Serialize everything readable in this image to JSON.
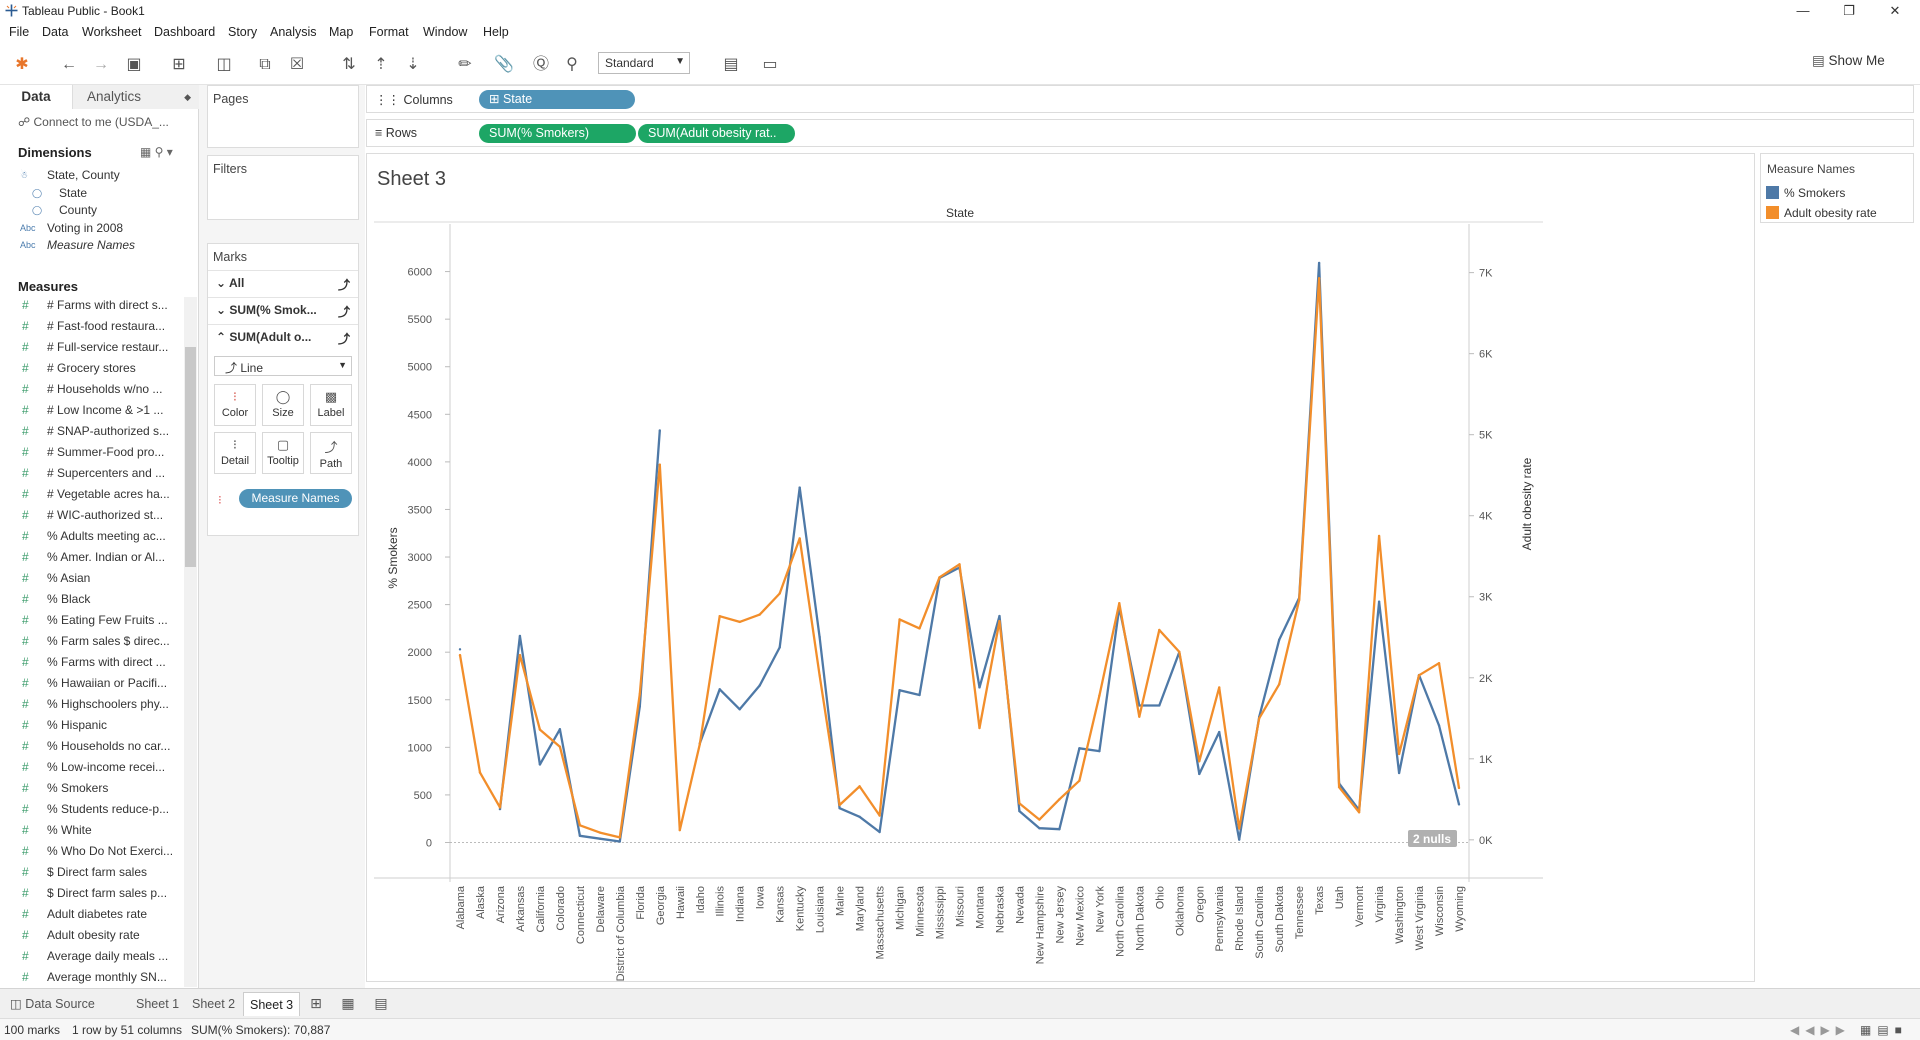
{
  "window": {
    "title": "Tableau Public - Book1"
  },
  "menu": [
    "File",
    "Data",
    "Worksheet",
    "Dashboard",
    "Story",
    "Analysis",
    "Map",
    "Format",
    "Window",
    "Help"
  ],
  "toolbar": {
    "fit": "Standard",
    "show_me": "Show Me"
  },
  "data_pane": {
    "tabs": {
      "data": "Data",
      "analytics": "Analytics"
    },
    "connection": "Connect to me (USDA_...",
    "dimensions_header": "Dimensions",
    "dimensions": [
      "State, County",
      "State",
      "County",
      "Voting in 2008",
      "Measure Names"
    ],
    "measures_header": "Measures",
    "measures": [
      "# Farms with direct s...",
      "# Fast-food restaura...",
      "# Full-service restaur...",
      "# Grocery stores",
      "# Households w/no ...",
      "# Low Income & >1 ...",
      "# SNAP-authorized s...",
      "# Summer-Food pro...",
      "# Supercenters and ...",
      "# Vegetable acres ha...",
      "# WIC-authorized st...",
      "% Adults meeting ac...",
      "% Amer. Indian or Al...",
      "% Asian",
      "% Black",
      "% Eating Few Fruits ...",
      "% Farm sales $ direc...",
      "% Farms with direct ...",
      "% Hawaiian or Pacifi...",
      "% Highschoolers phy...",
      "% Hispanic",
      "% Households no car...",
      "% Low-income recei...",
      "% Smokers",
      "% Students reduce-p...",
      "% White",
      "% Who Do Not Exerci...",
      "$ Direct farm sales",
      "$ Direct farm sales p...",
      "Adult diabetes rate",
      "Adult obesity rate",
      "Average daily meals ...",
      "Average monthly SN..."
    ]
  },
  "cards": {
    "pages": "Pages",
    "filters": "Filters",
    "marks": "Marks",
    "marks_all": "All",
    "marks_smokers": "SUM(% Smok...",
    "marks_obesity": "SUM(Adult o...",
    "mark_type": "Line",
    "buttons": [
      "Color",
      "Size",
      "Label",
      "Detail",
      "Tooltip",
      "Path"
    ],
    "measure_names_pill": "Measure Names"
  },
  "shelves": {
    "columns_label": "Columns",
    "columns_pill": "State",
    "rows_label": "Rows",
    "rows_pills": [
      "SUM(% Smokers)",
      "SUM(Adult obesity rat.."
    ]
  },
  "sheet": {
    "title": "Sheet 3",
    "nulls": "2 nulls"
  },
  "legend": {
    "title": "Measure Names",
    "items": [
      {
        "label": "% Smokers",
        "color": "#4e79a7"
      },
      {
        "label": "Adult obesity rate",
        "color": "#f28e2b"
      }
    ]
  },
  "tabs": {
    "data_source": "Data Source",
    "sheets": [
      "Sheet 1",
      "Sheet 2",
      "Sheet 3"
    ],
    "active": "Sheet 3"
  },
  "status": {
    "marks": "100 marks",
    "dims": "1 row by 51 columns",
    "sum": "SUM(% Smokers): 70,887"
  },
  "chart_data": {
    "type": "line",
    "xlabel": "State",
    "ylabel": "% Smokers",
    "y2label": "Adult obesity rate",
    "ylim": [
      -100,
      6500
    ],
    "y2lim": [
      -150,
      7600
    ],
    "yticks": [
      0,
      500,
      1000,
      1500,
      2000,
      2500,
      3000,
      3500,
      4000,
      4500,
      5000,
      5500,
      6000
    ],
    "y2ticks": [
      "0K",
      "1K",
      "2K",
      "3K",
      "4K",
      "5K",
      "6K",
      "7K"
    ],
    "categories": [
      "Alabama",
      "Alaska",
      "Arizona",
      "Arkansas",
      "California",
      "Colorado",
      "Connecticut",
      "Delaware",
      "District of Columbia",
      "Florida",
      "Georgia",
      "Hawaii",
      "Idaho",
      "Illinois",
      "Indiana",
      "Iowa",
      "Kansas",
      "Kentucky",
      "Louisiana",
      "Maine",
      "Maryland",
      "Massachusetts",
      "Michigan",
      "Minnesota",
      "Mississippi",
      "Missouri",
      "Montana",
      "Nebraska",
      "Nevada",
      "New Hampshire",
      "New Jersey",
      "New Mexico",
      "New York",
      "North Carolina",
      "North Dakota",
      "Ohio",
      "Oklahoma",
      "Oregon",
      "Pennsylvania",
      "Rhode Island",
      "South Carolina",
      "South Dakota",
      "Tennessee",
      "Texas",
      "Utah",
      "Vermont",
      "Virginia",
      "Washington",
      "West Virginia",
      "Wisconsin",
      "Wyoming"
    ],
    "series": [
      {
        "name": "% Smokers",
        "color": "#4e79a7",
        "values": [
          2030,
          null,
          350,
          2170,
          820,
          1190,
          70,
          40,
          10,
          1430,
          4330,
          null,
          1040,
          1610,
          1400,
          1650,
          2050,
          3730,
          2160,
          360,
          270,
          110,
          1600,
          1550,
          2780,
          2890,
          1630,
          2380,
          330,
          150,
          140,
          990,
          960,
          2470,
          1440,
          1440,
          2000,
          720,
          1160,
          30,
          1320,
          2130,
          2570,
          6090,
          620,
          340,
          2530,
          730,
          1760,
          1230,
          400
        ]
      },
      {
        "name": "Adult obesity rate",
        "color": "#f28e2b",
        "values": [
          2280,
          830,
          400,
          2280,
          1360,
          1150,
          180,
          90,
          30,
          1800,
          4630,
          120,
          1180,
          2760,
          2690,
          2780,
          3040,
          3720,
          2030,
          430,
          660,
          300,
          2720,
          2610,
          3240,
          3400,
          1380,
          2700,
          450,
          250,
          500,
          730,
          1780,
          2920,
          1520,
          2590,
          2320,
          970,
          1880,
          140,
          1500,
          1920,
          2960,
          6930,
          650,
          340,
          3750,
          1060,
          2030,
          2180,
          640
        ]
      }
    ]
  }
}
